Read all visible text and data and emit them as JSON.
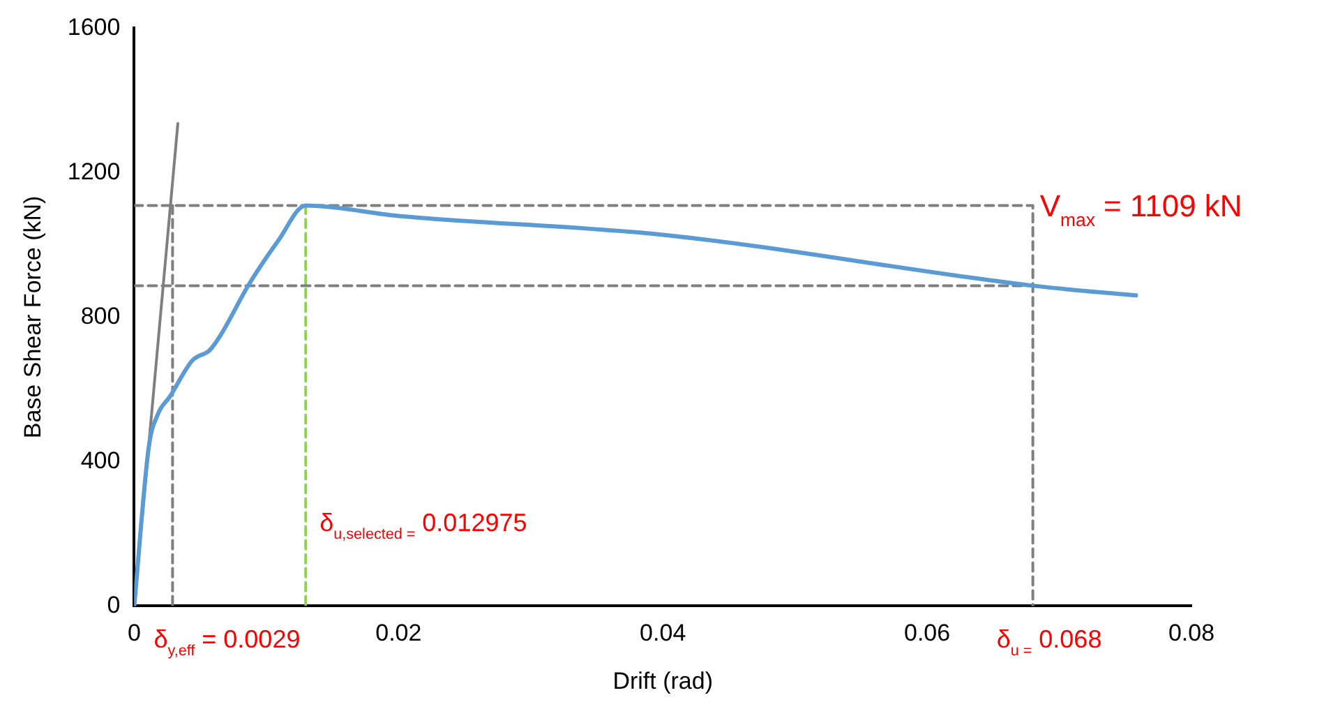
{
  "chart_data": {
    "type": "line",
    "xlabel": "Drift (rad)",
    "ylabel": "Base Shear Force (kN)",
    "xlim": [
      0,
      0.08
    ],
    "xticks": [
      0,
      0.02,
      0.04,
      0.06,
      0.08
    ],
    "ylim": [
      0,
      1600
    ],
    "yticks": [
      0,
      400,
      800,
      1200,
      1600
    ],
    "grid": false,
    "legend": false,
    "marker": "none",
    "series": [
      {
        "color": "#5b9bd5",
        "line_style": "solid",
        "x": [
          0,
          0.0011,
          0.0018,
          0.0027,
          0.0044,
          0.0057,
          0.0065,
          0.0087,
          0.0109,
          0.012975,
          0.02,
          0.04,
          0.068,
          0.0758
        ],
        "values": [
          0,
          440,
          532,
          580,
          680,
          708,
          748,
          892,
          1012,
          1109,
          1080,
          1028,
          887,
          860
        ]
      },
      {
        "color": "#7f7f7f",
        "line_style": "solid",
        "x": [
          0,
          0.0033
        ],
        "values": [
          0,
          1336
        ]
      },
      {
        "color": "#7f7f7f",
        "line_style": "dashed",
        "x": [
          0,
          0.068,
          0.068
        ],
        "values": [
          1109,
          1109,
          0
        ]
      },
      {
        "color": "#7f7f7f",
        "line_style": "dashed",
        "x": [
          0,
          0.068
        ],
        "values": [
          887,
          887
        ]
      },
      {
        "color": "#7f7f7f",
        "line_style": "dashed",
        "x": [
          0.0029,
          0.0029
        ],
        "values": [
          1109,
          0
        ]
      },
      {
        "color": "#92d050",
        "line_style": "dashed",
        "x": [
          0.012975,
          0.012975
        ],
        "values": [
          1109,
          0
        ]
      }
    ],
    "annotations": [
      {
        "text": "V$_{max}$ = 1109 kN",
        "x": 0.068,
        "y": 1109
      },
      {
        "text": "δ$_{u,selected =}$ 0.012975",
        "x": 0.012975,
        "y": 208
      },
      {
        "text": "δ$_{y,eff}$ = 0.0029",
        "x": 0.0029,
        "y": 0
      },
      {
        "text": "δ$_{u =}$ 0.068",
        "x": 0.068,
        "y": 0
      }
    ]
  }
}
